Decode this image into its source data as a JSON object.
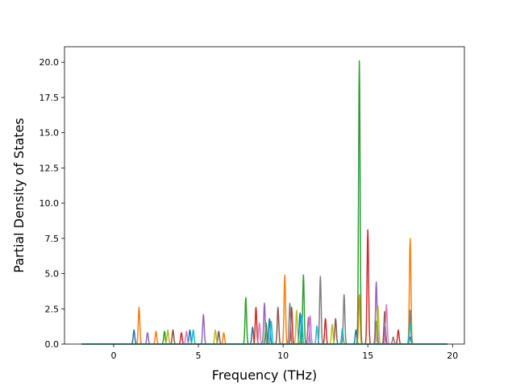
{
  "chart_data": {
    "type": "line",
    "title": "",
    "xlabel": "Frequency (THz)",
    "ylabel": "Partial Density of States",
    "xlim": [
      -2.9,
      20.7
    ],
    "ylim": [
      0,
      21.1
    ],
    "xticks": [
      0,
      5,
      10,
      15,
      20
    ],
    "yticks": [
      0.0,
      2.5,
      5.0,
      7.5,
      10.0,
      12.5,
      15.0,
      17.5,
      20.0
    ],
    "x_tick_labels": [
      "0",
      "5",
      "10",
      "15",
      "20"
    ],
    "y_tick_labels": [
      "0.0",
      "2.5",
      "5.0",
      "7.5",
      "10.0",
      "12.5",
      "15.0",
      "17.5",
      "20.0"
    ],
    "grid": false,
    "legend": "none",
    "x_domain": [
      -1.9,
      19.7
    ],
    "series": [
      {
        "color": "#1f77b4",
        "peaks": [
          [
            1.2,
            1.0
          ],
          [
            4.5,
            1.0
          ],
          [
            8.2,
            1.2
          ],
          [
            9.2,
            1.8
          ],
          [
            11.0,
            2.2
          ],
          [
            14.3,
            1.0
          ],
          [
            16.0,
            1.2
          ],
          [
            17.5,
            0.5
          ]
        ]
      },
      {
        "color": "#ff7f0e",
        "peaks": [
          [
            1.5,
            2.6
          ],
          [
            2.5,
            0.9
          ],
          [
            10.1,
            4.9
          ],
          [
            17.5,
            7.5
          ],
          [
            14.5,
            3.5
          ],
          [
            6.5,
            0.8
          ]
        ]
      },
      {
        "color": "#2ca02c",
        "peaks": [
          [
            7.8,
            3.3
          ],
          [
            11.2,
            4.9
          ],
          [
            14.5,
            20.1
          ],
          [
            9.0,
            1.5
          ],
          [
            3.0,
            0.9
          ],
          [
            15.5,
            1.6
          ]
        ]
      },
      {
        "color": "#d62728",
        "peaks": [
          [
            8.4,
            2.6
          ],
          [
            10.5,
            2.6
          ],
          [
            15.0,
            8.1
          ],
          [
            12.5,
            1.8
          ],
          [
            4.0,
            0.8
          ],
          [
            16.8,
            1.0
          ]
        ]
      },
      {
        "color": "#9467bd",
        "peaks": [
          [
            5.3,
            2.1
          ],
          [
            8.9,
            2.9
          ],
          [
            15.5,
            4.4
          ],
          [
            11.5,
            1.9
          ],
          [
            2.0,
            0.8
          ]
        ]
      },
      {
        "color": "#8c564b",
        "peaks": [
          [
            3.5,
            1.0
          ],
          [
            9.7,
            2.6
          ],
          [
            13.1,
            1.8
          ],
          [
            16.0,
            2.3
          ],
          [
            6.2,
            0.9
          ]
        ]
      },
      {
        "color": "#e377c2",
        "peaks": [
          [
            4.3,
            0.9
          ],
          [
            8.6,
            1.5
          ],
          [
            11.6,
            2.0
          ],
          [
            16.1,
            2.8
          ],
          [
            17.5,
            2.1
          ]
        ]
      },
      {
        "color": "#7f7f7f",
        "peaks": [
          [
            10.4,
            2.9
          ],
          [
            12.2,
            4.8
          ],
          [
            13.6,
            3.5
          ],
          [
            16.5,
            0.5
          ],
          [
            17.5,
            2.4
          ]
        ]
      },
      {
        "color": "#bcbd22",
        "peaks": [
          [
            3.2,
            1.0
          ],
          [
            6.0,
            1.0
          ],
          [
            10.8,
            2.4
          ],
          [
            15.6,
            2.7
          ],
          [
            12.9,
            1.4
          ]
        ]
      },
      {
        "color": "#17becf",
        "peaks": [
          [
            4.7,
            1.0
          ],
          [
            9.3,
            1.6
          ],
          [
            11.1,
            2.1
          ],
          [
            12.0,
            1.3
          ],
          [
            13.5,
            1.1
          ],
          [
            17.5,
            1.5
          ]
        ]
      }
    ]
  }
}
